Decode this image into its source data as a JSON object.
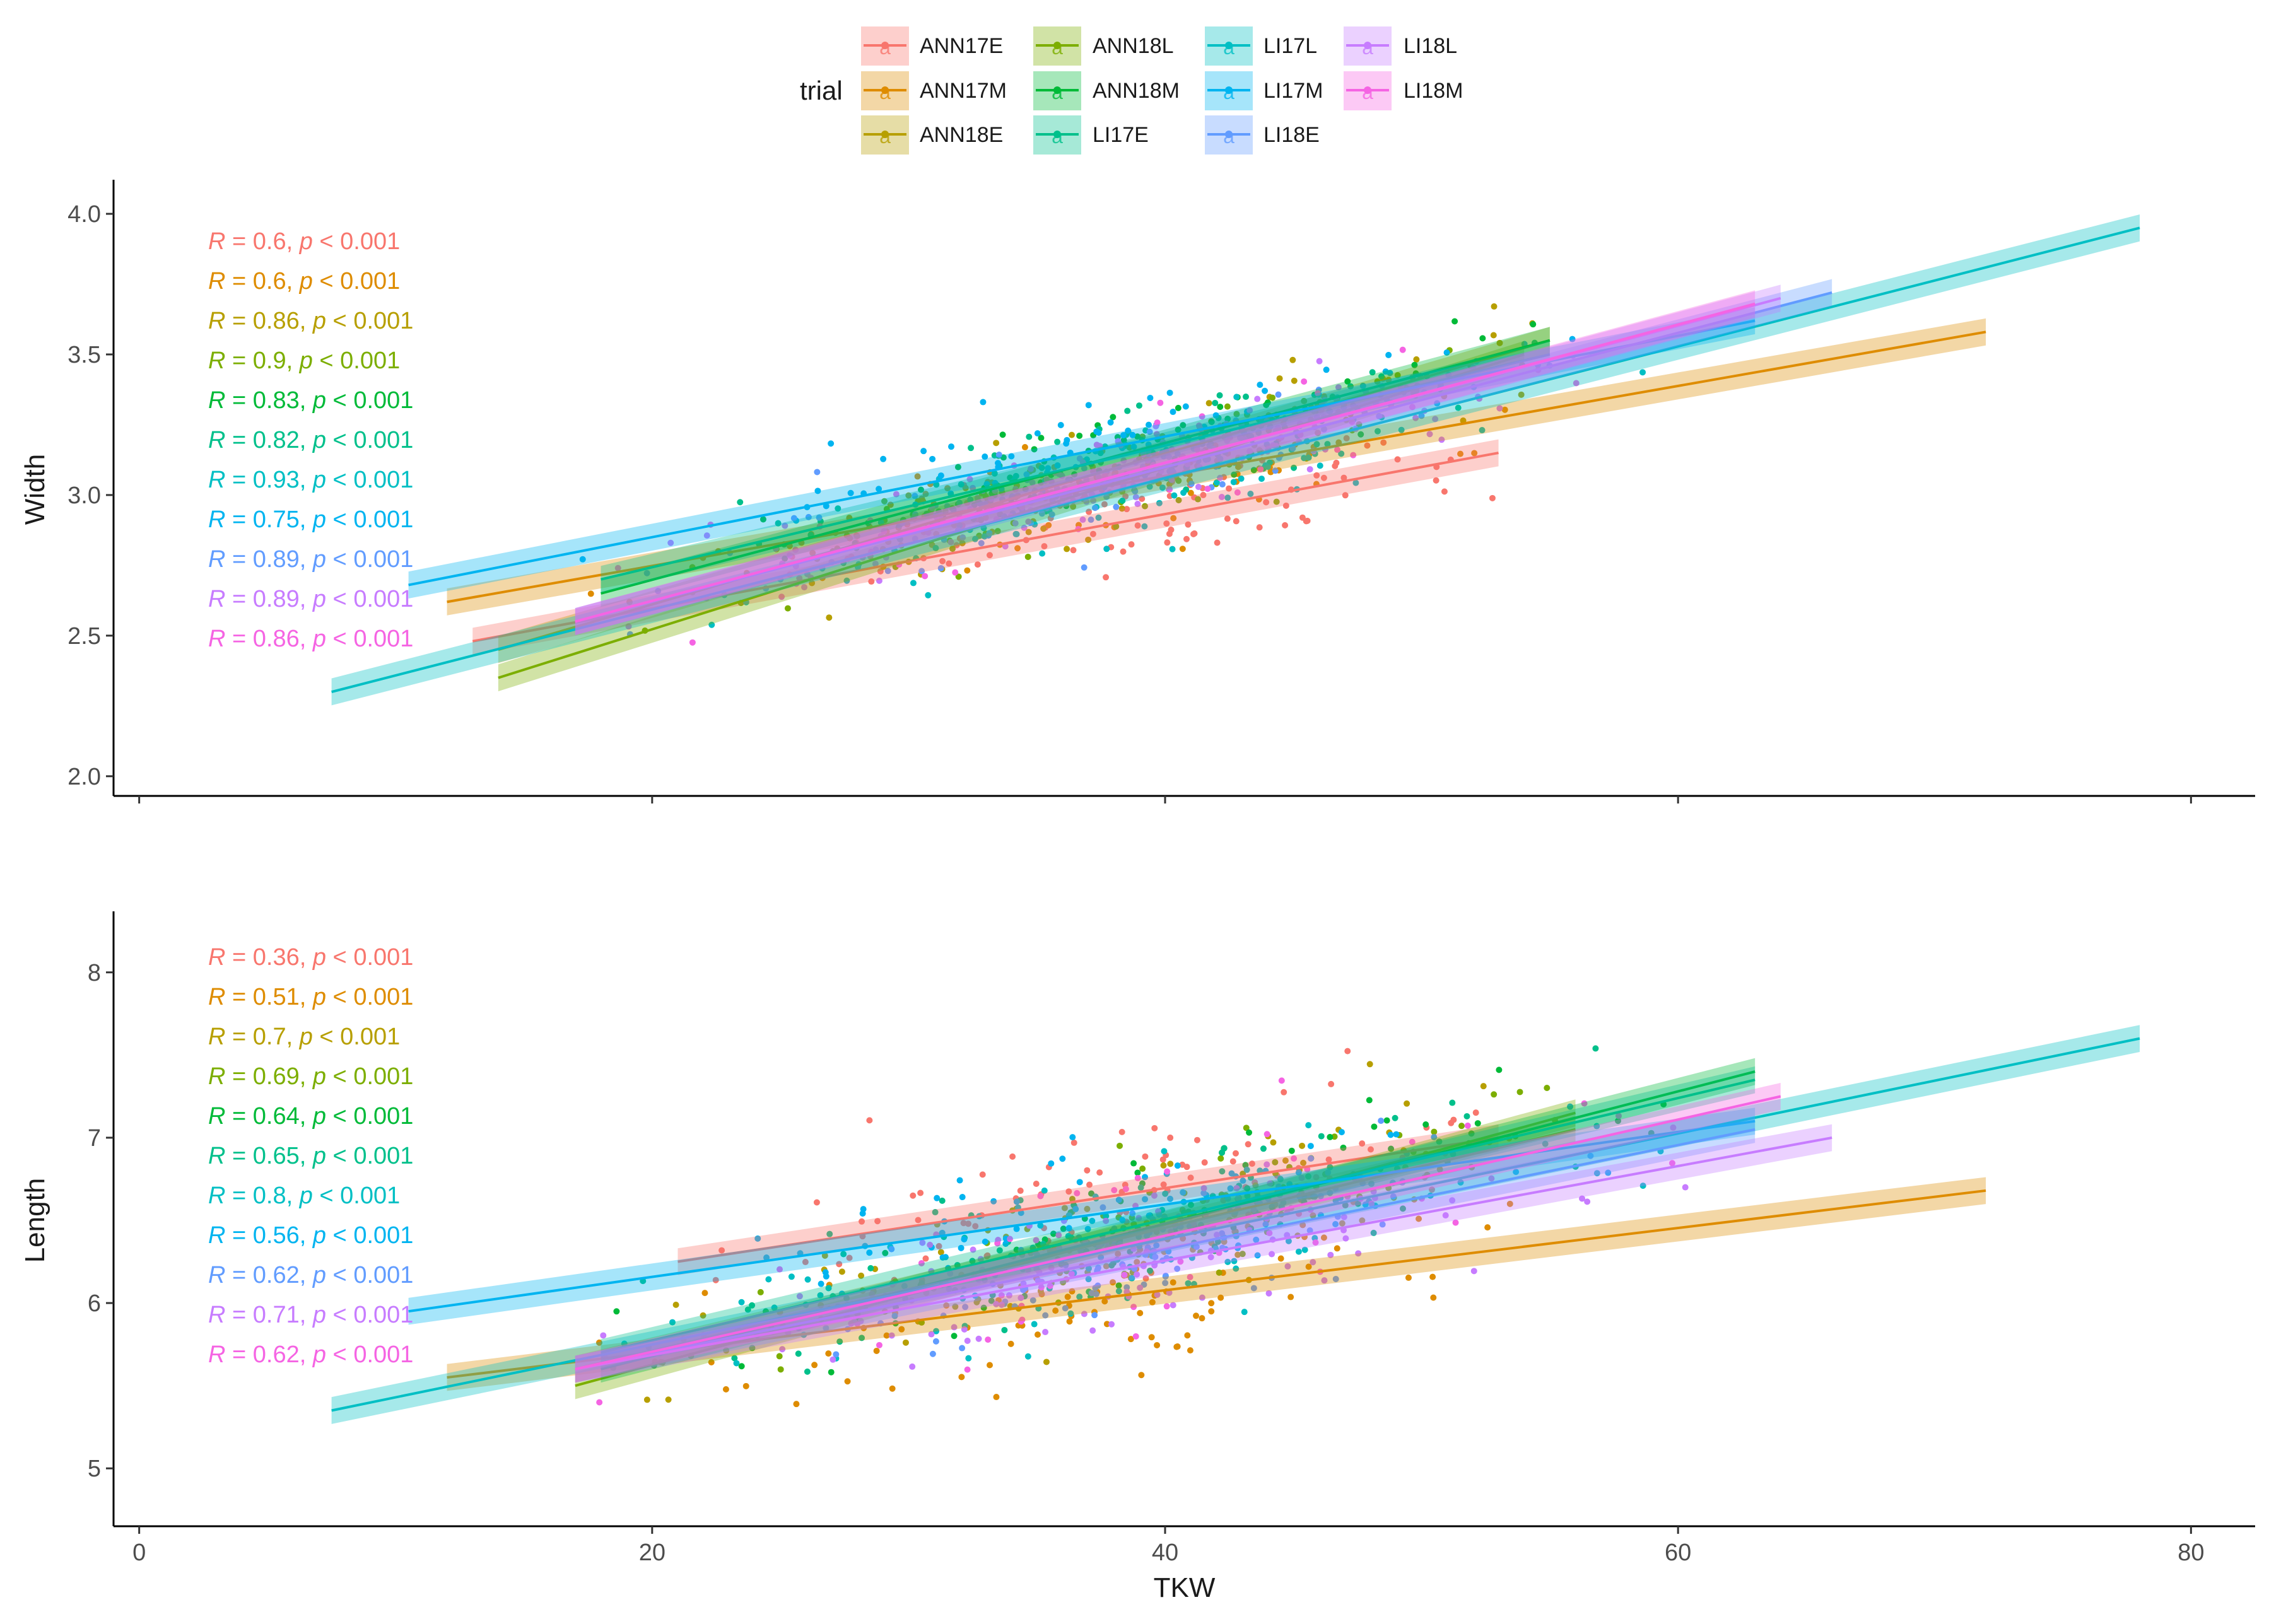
{
  "chart_data": [
    {
      "type": "scatter",
      "panel": "top",
      "xlabel": "",
      "ylabel": "Width",
      "xlim": [
        -1,
        82.5
      ],
      "ylim": [
        1.93,
        4.11
      ],
      "xticks": [
        0,
        20,
        40,
        60,
        80
      ],
      "yticks": [
        "2.0",
        "2.5",
        "3.0",
        "3.5",
        "4.0"
      ],
      "series": [
        {
          "name": "ANN17E",
          "color": "#F8766D",
          "fit": [
            [
              13,
              2.48
            ],
            [
              53,
              3.15
            ]
          ],
          "annotation": {
            "R": "0.6",
            "p": "0.001"
          }
        },
        {
          "name": "ANN17M",
          "color": "#DE8C00",
          "fit": [
            [
              12,
              2.62
            ],
            [
              72,
              3.58
            ]
          ],
          "annotation": {
            "R": "0.6",
            "p": "0.001"
          }
        },
        {
          "name": "ANN18E",
          "color": "#B79F00",
          "fit": [
            [
              14,
              2.45
            ],
            [
              55,
              3.55
            ]
          ],
          "annotation": {
            "R": "0.86",
            "p": "0.001"
          }
        },
        {
          "name": "ANN18L",
          "color": "#7CAE00",
          "fit": [
            [
              14,
              2.35
            ],
            [
              54,
              3.5
            ]
          ],
          "annotation": {
            "R": "0.9",
            "p": "0.001"
          }
        },
        {
          "name": "ANN18M",
          "color": "#00BA38",
          "fit": [
            [
              18,
              2.65
            ],
            [
              55,
              3.55
            ]
          ],
          "annotation": {
            "R": "0.83",
            "p": "0.001"
          }
        },
        {
          "name": "LI17E",
          "color": "#00C08B",
          "fit": [
            [
              18,
              2.7
            ],
            [
              55,
              3.5
            ]
          ],
          "annotation": {
            "R": "0.82",
            "p": "0.001"
          }
        },
        {
          "name": "LI17L",
          "color": "#00BFC4",
          "fit": [
            [
              7.5,
              2.3
            ],
            [
              78,
              3.95
            ]
          ],
          "annotation": {
            "R": "0.93",
            "p": "0.001"
          }
        },
        {
          "name": "LI17M",
          "color": "#00B4F0",
          "fit": [
            [
              10.5,
              2.68
            ],
            [
              63,
              3.62
            ]
          ],
          "annotation": {
            "R": "0.75",
            "p": "0.001"
          }
        },
        {
          "name": "LI18E",
          "color": "#619CFF",
          "fit": [
            [
              17,
              2.55
            ],
            [
              66,
              3.72
            ]
          ],
          "annotation": {
            "R": "0.89",
            "p": "0.001"
          }
        },
        {
          "name": "LI18L",
          "color": "#C77CFF",
          "fit": [
            [
              17,
              2.55
            ],
            [
              64,
              3.7
            ]
          ],
          "annotation": {
            "R": "0.89",
            "p": "0.001"
          }
        },
        {
          "name": "LI18M",
          "color": "#F564E3",
          "fit": [
            [
              17,
              2.55
            ],
            [
              63,
              3.68
            ]
          ],
          "annotation": {
            "R": "0.86",
            "p": "0.001"
          }
        }
      ]
    },
    {
      "type": "scatter",
      "panel": "bottom",
      "xlabel": "TKW",
      "ylabel": "Length",
      "xlim": [
        -1,
        82.5
      ],
      "ylim": [
        4.65,
        8.35
      ],
      "xticks": [
        0,
        20,
        40,
        60,
        80
      ],
      "yticks": [
        "5",
        "6",
        "7",
        "8"
      ],
      "series": [
        {
          "name": "ANN17E",
          "color": "#F8766D",
          "fit": [
            [
              21,
              6.25
            ],
            [
              53,
              7.0
            ]
          ],
          "annotation": {
            "R": "0.36",
            "p": "0.001"
          }
        },
        {
          "name": "ANN17M",
          "color": "#DE8C00",
          "fit": [
            [
              12,
              5.55
            ],
            [
              72,
              6.68
            ]
          ],
          "annotation": {
            "R": "0.51",
            "p": "0.001"
          }
        },
        {
          "name": "ANN18E",
          "color": "#B79F00",
          "fit": [
            [
              17,
              5.6
            ],
            [
              56,
              7.05
            ]
          ],
          "annotation": {
            "R": "0.7",
            "p": "0.001"
          }
        },
        {
          "name": "ANN18L",
          "color": "#7CAE00",
          "fit": [
            [
              17,
              5.5
            ],
            [
              56,
              7.15
            ]
          ],
          "annotation": {
            "R": "0.69",
            "p": "0.001"
          }
        },
        {
          "name": "ANN18M",
          "color": "#00BA38",
          "fit": [
            [
              18,
              5.6
            ],
            [
              63,
              7.4
            ]
          ],
          "annotation": {
            "R": "0.64",
            "p": "0.001"
          }
        },
        {
          "name": "LI17E",
          "color": "#00C08B",
          "fit": [
            [
              18,
              5.7
            ],
            [
              63,
              7.35
            ]
          ],
          "annotation": {
            "R": "0.65",
            "p": "0.001"
          }
        },
        {
          "name": "LI17L",
          "color": "#00BFC4",
          "fit": [
            [
              7.5,
              5.35
            ],
            [
              78,
              7.6
            ]
          ],
          "annotation": {
            "R": "0.8",
            "p": "0.001"
          }
        },
        {
          "name": "LI17M",
          "color": "#00B4F0",
          "fit": [
            [
              10.5,
              5.95
            ],
            [
              63,
              7.1
            ]
          ],
          "annotation": {
            "R": "0.56",
            "p": "0.001"
          }
        },
        {
          "name": "LI18E",
          "color": "#619CFF",
          "fit": [
            [
              17,
              5.6
            ],
            [
              63,
              7.05
            ]
          ],
          "annotation": {
            "R": "0.62",
            "p": "0.001"
          }
        },
        {
          "name": "LI18L",
          "color": "#C77CFF",
          "fit": [
            [
              17,
              5.6
            ],
            [
              66,
              7.0
            ]
          ],
          "annotation": {
            "R": "0.71",
            "p": "0.001"
          }
        },
        {
          "name": "LI18M",
          "color": "#F564E3",
          "fit": [
            [
              17,
              5.6
            ],
            [
              64,
              7.25
            ]
          ],
          "annotation": {
            "R": "0.62",
            "p": "0.001"
          }
        }
      ]
    }
  ],
  "legend": {
    "title": "trial",
    "items": [
      "ANN17E",
      "ANN17M",
      "ANN18E",
      "ANN18L",
      "ANN18M",
      "LI17E",
      "LI17L",
      "LI17M",
      "LI18E",
      "LI18L",
      "LI18M"
    ],
    "key_glyph": "a"
  },
  "annotation_text": {
    "r_label": "R",
    "eq": " = ",
    "sep": ", ",
    "p_label": "p",
    "lt": " < "
  }
}
